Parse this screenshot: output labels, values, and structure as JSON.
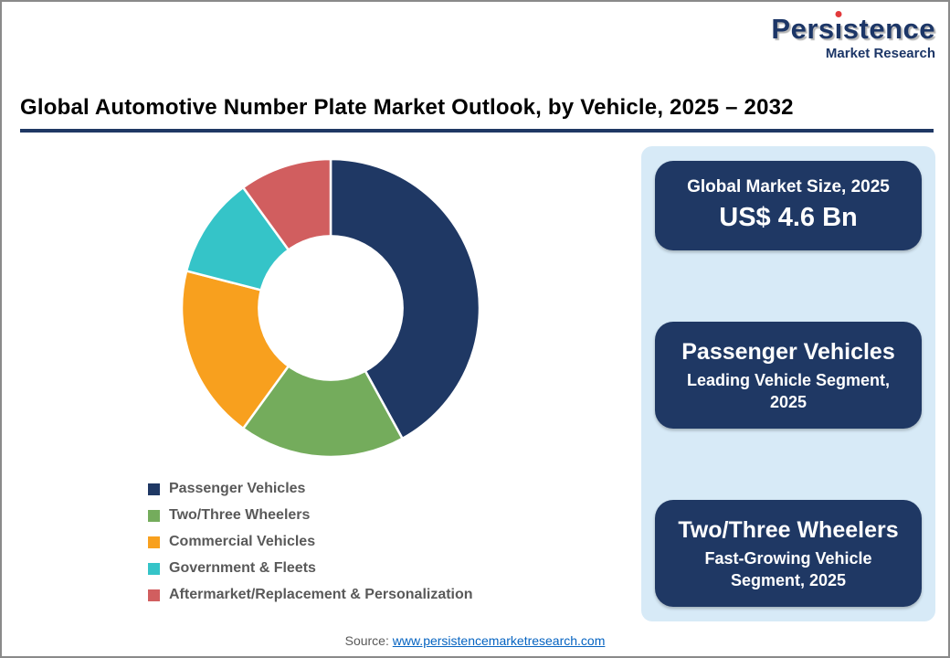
{
  "logo": {
    "name_pre": "Pers",
    "name_i": "ı",
    "name_post": "stence",
    "subtitle": "Market Research"
  },
  "title": "Global Automotive Number Plate Market Outlook, by Vehicle, 2025 – 2032",
  "chart_data": {
    "type": "pie",
    "style": "donut",
    "categories": [
      "Passenger Vehicles",
      "Two/Three Wheelers",
      "Commercial Vehicles",
      "Government & Fleets",
      "Aftermarket/Replacement & Personalization"
    ],
    "values": [
      42,
      18,
      19,
      11,
      10
    ],
    "colors": [
      "#1F3864",
      "#74AC5C",
      "#F8A01E",
      "#35C4C8",
      "#D15E5F"
    ],
    "inner_radius_ratio": 0.49,
    "start_angle_deg": 0,
    "direction": "clockwise",
    "legend_position": "bottom-left",
    "title": "Global Automotive Number Plate Market Outlook, by Vehicle, 2025 – 2032"
  },
  "info_cards": [
    {
      "line1": "Global Market Size, 2025",
      "line2": "US$ 4.6 Bn"
    },
    {
      "line1": "Passenger Vehicles",
      "line2": "Leading Vehicle Segment, 2025"
    },
    {
      "line1": "Two/Three Wheelers",
      "line2": "Fast-Growing Vehicle Segment, 2025"
    }
  ],
  "source": {
    "label": "Source: ",
    "link": "www.persistencemarketresearch.com"
  },
  "colors": {
    "navy": "#1F3864",
    "panel_blue": "#D7EAF7",
    "legend_text": "#595959",
    "link_blue": "#0563C1",
    "logo_navy": "#1C3667",
    "logo_red": "#E23A3C",
    "border_gray": "#8A8A8A"
  }
}
